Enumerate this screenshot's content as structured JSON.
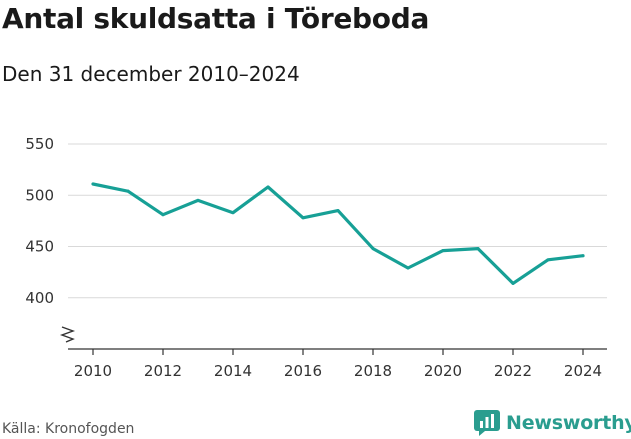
{
  "title": "Antal skuldsatta i Töreboda",
  "subtitle": "Den 31 december 2010–2024",
  "source": "Källa: Kronofogden",
  "brand": "Newsworthy",
  "colors": {
    "line": "#17a096",
    "grid": "#d9d9d9",
    "axis": "#333333",
    "brand": "#2a9d8f"
  },
  "chart_data": {
    "type": "line",
    "x": [
      2010,
      2011,
      2012,
      2013,
      2014,
      2015,
      2016,
      2017,
      2018,
      2019,
      2020,
      2021,
      2022,
      2023,
      2024
    ],
    "series": [
      {
        "values": [
          511,
          504,
          481,
          495,
          483,
          508,
          478,
          485,
          448,
          429,
          446,
          448,
          414,
          437,
          441
        ]
      }
    ],
    "xticks": [
      "2010",
      "2012",
      "2014",
      "2016",
      "2018",
      "2020",
      "2022",
      "2024"
    ],
    "yticks": [
      "400",
      "450",
      "500",
      "550"
    ],
    "ylim": [
      350,
      550
    ],
    "xlim": [
      2010,
      2024
    ],
    "y_axis_break": true,
    "grid": "horizontal",
    "legend": "none"
  }
}
